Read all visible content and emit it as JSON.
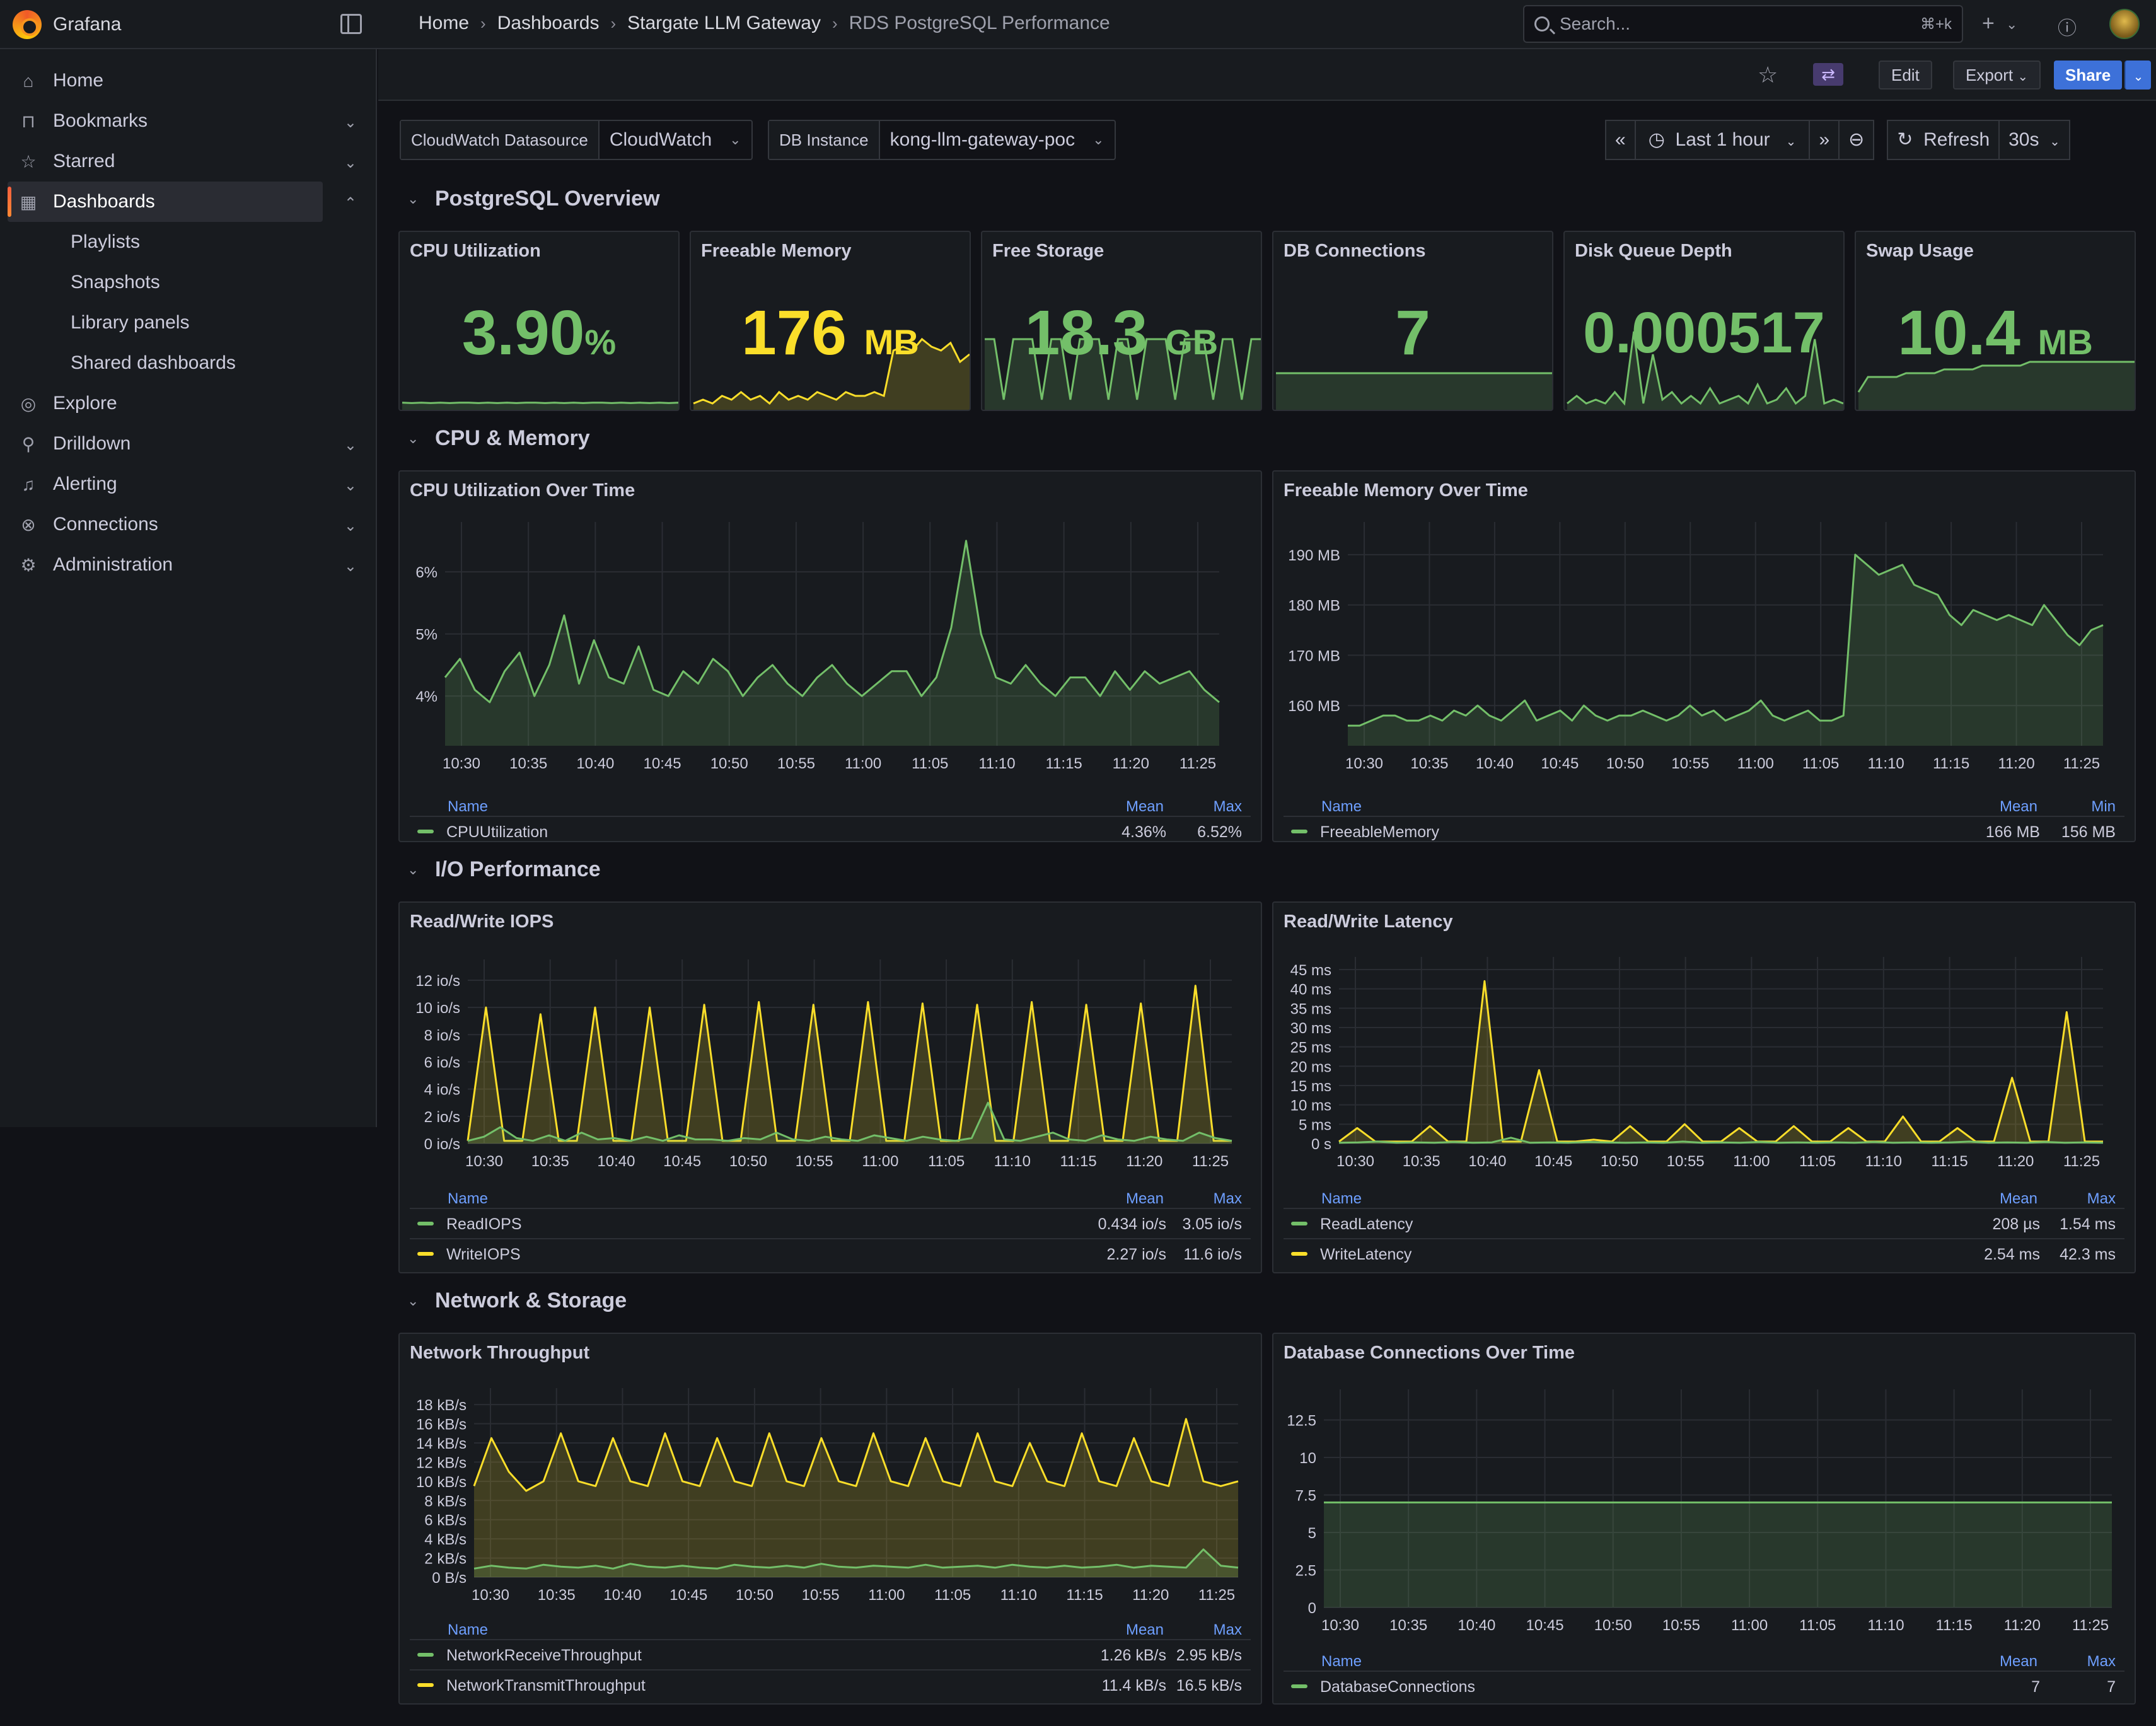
{
  "app": {
    "brand": "Grafana"
  },
  "breadcrumb": [
    "Home",
    "Dashboards",
    "Stargate LLM Gateway",
    "RDS PostgreSQL Performance"
  ],
  "search": {
    "placeholder": "Search...",
    "shortcut": "⌘+k"
  },
  "nav": {
    "items": [
      {
        "label": "Home",
        "icon": "home-icon"
      },
      {
        "label": "Bookmarks",
        "icon": "bookmark-icon"
      },
      {
        "label": "Starred",
        "icon": "star-icon"
      },
      {
        "label": "Dashboards",
        "icon": "grid-icon"
      },
      {
        "label": "Explore",
        "icon": "compass-icon"
      },
      {
        "label": "Drilldown",
        "icon": "drilldown-icon"
      },
      {
        "label": "Alerting",
        "icon": "bell-icon"
      },
      {
        "label": "Connections",
        "icon": "plug-icon"
      },
      {
        "label": "Administration",
        "icon": "gear-icon"
      }
    ],
    "sub": [
      "Playlists",
      "Snapshots",
      "Library panels",
      "Shared dashboards"
    ]
  },
  "toolbar": {
    "edit": "Edit",
    "export": "Export",
    "share": "Share"
  },
  "variables": [
    {
      "label": "CloudWatch Datasource",
      "value": "CloudWatch"
    },
    {
      "label": "DB Instance",
      "value": "kong-llm-gateway-poc"
    }
  ],
  "time": {
    "range": "Last 1 hour",
    "refresh": "Refresh",
    "interval": "30s"
  },
  "rows": [
    "PostgreSQL Overview",
    "CPU & Memory",
    "I/O Performance",
    "Network & Storage"
  ],
  "colors": {
    "green": "#73bf69",
    "yellow": "#fade2a",
    "link": "#6e9fff"
  },
  "stats": [
    {
      "title": "CPU Utilization",
      "value": "3.90",
      "unit": "%",
      "color": "#73bf69",
      "series": [
        1.2,
        1.1,
        1.2,
        1.1,
        1.2,
        1.1,
        1.2,
        1.2,
        1.1,
        1.2,
        1.1,
        1.2,
        1.1,
        1.2,
        1.2,
        1.1,
        1.2,
        1.1,
        1.2,
        1.1,
        1.2,
        1.2,
        1.1,
        1.2,
        1.1,
        1.2,
        1.1,
        1.2,
        1.1,
        1.2
      ]
    },
    {
      "title": "Freeable Memory",
      "value": "176",
      "unit": "MB",
      "color": "#fade2a",
      "series": [
        1,
        2,
        1,
        3,
        2,
        4,
        2,
        3,
        1,
        4,
        2,
        3,
        2,
        4,
        3,
        2,
        4,
        3,
        3,
        4,
        3,
        15,
        16,
        15,
        18,
        16,
        15,
        17,
        12,
        14
      ]
    },
    {
      "title": "Free Storage",
      "value": "18.3",
      "unit": "GB",
      "color": "#73bf69",
      "series": [
        18,
        18,
        2,
        18,
        18,
        18,
        2,
        18,
        18,
        2,
        18,
        18,
        18,
        2,
        18,
        18,
        2,
        18,
        18,
        18,
        2,
        18,
        18,
        18,
        2,
        18,
        18,
        2,
        18,
        18
      ]
    },
    {
      "title": "DB Connections",
      "value": "7",
      "unit": "",
      "color": "#73bf69",
      "series": [
        9,
        9,
        9,
        9,
        9,
        9,
        9,
        9,
        9,
        9,
        9,
        9,
        9,
        9,
        9,
        9,
        9,
        9,
        9,
        9,
        9,
        9,
        9,
        9,
        9,
        9,
        9,
        9,
        9,
        9
      ]
    },
    {
      "title": "Disk Queue Depth",
      "value": "0.000517",
      "unit": "",
      "color": "#73bf69",
      "series": [
        1,
        3,
        1,
        2,
        1,
        4,
        1,
        20,
        1,
        14,
        2,
        4,
        1,
        3,
        1,
        5,
        1,
        2,
        3,
        1,
        6,
        1,
        2,
        5,
        1,
        3,
        18,
        1,
        2,
        1
      ]
    },
    {
      "title": "Swap Usage",
      "value": "10.4",
      "unit": "MB",
      "color": "#73bf69",
      "series": [
        4,
        8,
        8,
        8,
        8,
        9,
        9,
        9,
        9,
        10,
        10,
        10,
        10,
        11,
        11,
        11,
        11,
        11,
        12,
        12,
        12,
        12,
        12,
        12,
        12,
        12,
        12,
        12,
        12,
        12
      ]
    }
  ],
  "chart_data": [
    {
      "type": "area",
      "title": "CPU Utilization Over Time",
      "x_ticks": [
        "10:30",
        "10:35",
        "10:40",
        "10:45",
        "10:50",
        "10:55",
        "11:00",
        "11:05",
        "11:10",
        "11:15",
        "11:20",
        "11:25"
      ],
      "y_ticks": [
        "4%",
        "5%",
        "6%"
      ],
      "ylim": [
        3.2,
        6.6
      ],
      "series": [
        {
          "name": "CPUUtilization",
          "color": "#73bf69",
          "values": [
            4.3,
            4.6,
            4.1,
            3.9,
            4.4,
            4.7,
            4.0,
            4.5,
            5.3,
            4.2,
            4.9,
            4.3,
            4.2,
            4.8,
            4.1,
            4.0,
            4.4,
            4.2,
            4.6,
            4.4,
            4.0,
            4.3,
            4.5,
            4.2,
            4.0,
            4.3,
            4.5,
            4.2,
            4.0,
            4.2,
            4.4,
            4.4,
            4.0,
            4.3,
            5.1,
            6.5,
            5.0,
            4.3,
            4.2,
            4.5,
            4.2,
            4.0,
            4.3,
            4.3,
            4.0,
            4.4,
            4.1,
            4.4,
            4.2,
            4.3,
            4.4,
            4.1,
            3.9
          ]
        }
      ],
      "legend": {
        "headers": [
          "Name",
          "Mean",
          "Max"
        ],
        "rows": [
          [
            "CPUUtilization",
            "4.36%",
            "6.52%"
          ]
        ]
      }
    },
    {
      "type": "area",
      "title": "Freeable Memory Over Time",
      "x_ticks": [
        "10:30",
        "10:35",
        "10:40",
        "10:45",
        "10:50",
        "10:55",
        "11:00",
        "11:05",
        "11:10",
        "11:15",
        "11:20",
        "11:25"
      ],
      "y_ticks": [
        "160 MB",
        "170 MB",
        "180 MB",
        "190 MB"
      ],
      "ylim": [
        152,
        194
      ],
      "series": [
        {
          "name": "FreeableMemory",
          "color": "#73bf69",
          "values": [
            156,
            156,
            157,
            158,
            158,
            157,
            157,
            158,
            157,
            159,
            158,
            160,
            158,
            157,
            159,
            161,
            157,
            158,
            159,
            157,
            160,
            158,
            157,
            158,
            158,
            159,
            158,
            157,
            158,
            160,
            158,
            159,
            157,
            158,
            159,
            161,
            158,
            157,
            158,
            159,
            157,
            157,
            158,
            190,
            188,
            186,
            187,
            188,
            184,
            183,
            182,
            178,
            176,
            179,
            178,
            177,
            178,
            177,
            176,
            180,
            177,
            174,
            172,
            175,
            176
          ]
        }
      ],
      "legend": {
        "headers": [
          "Name",
          "Mean",
          "Min"
        ],
        "rows": [
          [
            "FreeableMemory",
            "166 MB",
            "156 MB"
          ]
        ]
      }
    },
    {
      "type": "area",
      "title": "Read/Write IOPS",
      "x_ticks": [
        "10:30",
        "10:35",
        "10:40",
        "10:45",
        "10:50",
        "10:55",
        "11:00",
        "11:05",
        "11:10",
        "11:15",
        "11:20",
        "11:25"
      ],
      "y_ticks": [
        "0 io/s",
        "2 io/s",
        "4 io/s",
        "6 io/s",
        "8 io/s",
        "10 io/s",
        "12 io/s"
      ],
      "ylim": [
        0,
        12.6
      ],
      "series": [
        {
          "name": "ReadIOPS",
          "color": "#73bf69",
          "values": [
            0.2,
            0.5,
            1.2,
            0.4,
            0.2,
            0.6,
            0.2,
            0.8,
            0.3,
            0.4,
            0.2,
            0.5,
            0.2,
            0.6,
            0.3,
            0.3,
            0.2,
            0.4,
            0.3,
            0.8,
            0.3,
            0.2,
            0.5,
            0.3,
            0.2,
            0.6,
            0.4,
            0.2,
            0.5,
            0.3,
            0.2,
            0.4,
            3.0,
            0.3,
            0.2,
            0.5,
            0.8,
            0.3,
            0.2,
            0.6,
            0.3,
            0.2,
            0.5,
            0.3,
            0.2,
            0.8,
            0.4,
            0.2
          ]
        },
        {
          "name": "WriteIOPS",
          "color": "#fade2a",
          "values": [
            0.2,
            10,
            0.2,
            0.2,
            9.5,
            0.2,
            0.2,
            10,
            0.2,
            0.2,
            10,
            0.2,
            0.2,
            10.2,
            0.2,
            0.2,
            10.4,
            0.2,
            0.2,
            10.2,
            0.2,
            0.2,
            10.4,
            0.2,
            0.2,
            10.3,
            0.2,
            0.2,
            10.2,
            0.2,
            0.2,
            10.4,
            0.2,
            0.2,
            10.2,
            0.2,
            0.2,
            10.3,
            0.2,
            0.2,
            11.6,
            0.2,
            0.2
          ]
        }
      ],
      "legend": {
        "headers": [
          "Name",
          "Mean",
          "Max"
        ],
        "rows": [
          [
            "ReadIOPS",
            "0.434 io/s",
            "3.05 io/s"
          ],
          [
            "WriteIOPS",
            "2.27 io/s",
            "11.6 io/s"
          ]
        ]
      }
    },
    {
      "type": "area",
      "title": "Read/Write Latency",
      "x_ticks": [
        "10:30",
        "10:35",
        "10:40",
        "10:45",
        "10:50",
        "10:55",
        "11:00",
        "11:05",
        "11:10",
        "11:15",
        "11:20",
        "11:25"
      ],
      "y_ticks": [
        "0 s",
        "5 ms",
        "10 ms",
        "15 ms",
        "20 ms",
        "25 ms",
        "30 ms",
        "35 ms",
        "40 ms",
        "45 ms"
      ],
      "ylim": [
        0,
        45
      ],
      "series": [
        {
          "name": "ReadLatency",
          "color": "#73bf69",
          "values": [
            0.2,
            0.3,
            0.5,
            0.2,
            0.3,
            0.2,
            0.4,
            0.2,
            0.3,
            1.5,
            0.2,
            0.3,
            0.2,
            0.4,
            0.3,
            0.2,
            0.3,
            0.2,
            0.5,
            0.2,
            0.3,
            0.2,
            0.4,
            0.2,
            0.3,
            0.2,
            0.3,
            0.2,
            0.4,
            0.2,
            0.3,
            0.2,
            0.3,
            0.5,
            0.2,
            0.3,
            0.2,
            0.4,
            0.2,
            0.3,
            0.2
          ]
        },
        {
          "name": "WriteLatency",
          "color": "#fade2a",
          "values": [
            0.5,
            4,
            0.5,
            0.5,
            0.5,
            4.5,
            0.5,
            0.5,
            42,
            0.5,
            0.5,
            19,
            0.5,
            0.5,
            1,
            0.5,
            4.5,
            0.5,
            0.5,
            5,
            0.5,
            0.5,
            4,
            0.5,
            0.5,
            4.5,
            0.5,
            0.5,
            4,
            0.5,
            0.5,
            7,
            0.5,
            0.5,
            4,
            0.5,
            0.5,
            17,
            0.5,
            0.5,
            34,
            0.5,
            0.5
          ]
        }
      ],
      "legend": {
        "headers": [
          "Name",
          "Mean",
          "Max"
        ],
        "rows": [
          [
            "ReadLatency",
            "208 µs",
            "1.54 ms"
          ],
          [
            "WriteLatency",
            "2.54 ms",
            "42.3 ms"
          ]
        ]
      }
    },
    {
      "type": "area",
      "title": "Network Throughput",
      "x_ticks": [
        "10:30",
        "10:35",
        "10:40",
        "10:45",
        "10:50",
        "10:55",
        "11:00",
        "11:05",
        "11:10",
        "11:15",
        "11:20",
        "11:25"
      ],
      "y_ticks": [
        "0 B/s",
        "2 kB/s",
        "4 kB/s",
        "6 kB/s",
        "8 kB/s",
        "10 kB/s",
        "12 kB/s",
        "14 kB/s",
        "16 kB/s",
        "18 kB/s"
      ],
      "ylim": [
        0,
        18.4
      ],
      "series": [
        {
          "name": "NetworkReceiveThroughput",
          "color": "#73bf69",
          "values": [
            0.9,
            1.2,
            1.0,
            0.9,
            1.3,
            1.1,
            1.0,
            1.2,
            0.9,
            1.4,
            1.1,
            1.0,
            1.2,
            1.0,
            0.9,
            1.3,
            1.1,
            1.0,
            1.2,
            1.0,
            1.4,
            1.1,
            1.0,
            1.2,
            1.1,
            1.0,
            1.3,
            1.0,
            1.1,
            1.2,
            1.0,
            1.3,
            1.1,
            1.0,
            1.2,
            1.0,
            1.1,
            1.3,
            1.0,
            1.2,
            1.1,
            1.0,
            2.9,
            1.2,
            1.0
          ]
        },
        {
          "name": "NetworkTransmitThroughput",
          "color": "#fade2a",
          "values": [
            9.5,
            14.5,
            11,
            9,
            10,
            15,
            10,
            9.5,
            14.5,
            10,
            9.5,
            15,
            10,
            9.5,
            14.5,
            10,
            9.5,
            15,
            10,
            9.5,
            14.5,
            10,
            9.5,
            15,
            10,
            9.5,
            14.5,
            10,
            9.5,
            15,
            10,
            9.5,
            14,
            10,
            9.5,
            15,
            10,
            9.5,
            14.5,
            10,
            9.5,
            16.5,
            10,
            9.5,
            10
          ]
        }
      ],
      "legend": {
        "headers": [
          "Name",
          "Mean",
          "Max"
        ],
        "rows": [
          [
            "NetworkReceiveThroughput",
            "1.26 kB/s",
            "2.95 kB/s"
          ],
          [
            "NetworkTransmitThroughput",
            "11.4 kB/s",
            "16.5 kB/s"
          ]
        ]
      }
    },
    {
      "type": "area",
      "title": "Database Connections Over Time",
      "x_ticks": [
        "10:30",
        "10:35",
        "10:40",
        "10:45",
        "10:50",
        "10:55",
        "11:00",
        "11:05",
        "11:10",
        "11:15",
        "11:20",
        "11:25"
      ],
      "y_ticks": [
        "0",
        "2.5",
        "5",
        "7.5",
        "10",
        "12.5"
      ],
      "ylim": [
        0,
        13.7
      ],
      "series": [
        {
          "name": "DatabaseConnections",
          "color": "#73bf69",
          "values": [
            7,
            7,
            7,
            7,
            7,
            7,
            7,
            7,
            7,
            7,
            7,
            7,
            7,
            7,
            7,
            7,
            7,
            7,
            7,
            7
          ]
        }
      ],
      "legend": {
        "headers": [
          "Name",
          "Mean",
          "Max"
        ],
        "rows": [
          [
            "DatabaseConnections",
            "7",
            "7"
          ]
        ]
      }
    }
  ]
}
